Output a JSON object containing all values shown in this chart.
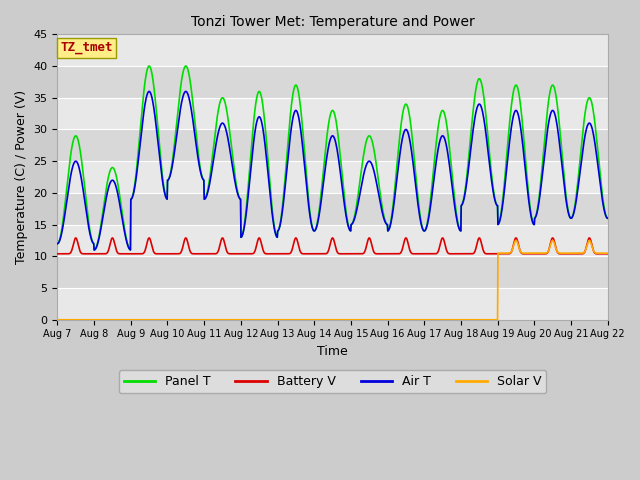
{
  "title": "Tonzi Tower Met: Temperature and Power",
  "xlabel": "Time",
  "ylabel": "Temperature (C) / Power (V)",
  "ylim": [
    0,
    45
  ],
  "yticks": [
    0,
    5,
    10,
    15,
    20,
    25,
    30,
    35,
    40,
    45
  ],
  "xtick_labels": [
    "Aug 7",
    "Aug 8",
    "Aug 9",
    "Aug 10",
    "Aug 11",
    "Aug 12",
    "Aug 13",
    "Aug 14",
    "Aug 15",
    "Aug 16",
    "Aug 17",
    "Aug 18",
    "Aug 19",
    "Aug 20",
    "Aug 21",
    "Aug 22"
  ],
  "annotation_box": "TZ_tmet",
  "annotation_box_facecolor": "#ffee88",
  "annotation_box_edgecolor": "#999900",
  "annotation_text_color": "#aa0000",
  "colors": {
    "panel_t": "#00dd00",
    "battery_v": "#dd0000",
    "air_t": "#0000dd",
    "solar_v": "#ffaa00"
  },
  "legend_labels": [
    "Panel T",
    "Battery V",
    "Air T",
    "Solar V"
  ],
  "fig_facecolor": "#cccccc",
  "band_colors": [
    "#e8e8e8",
    "#d8d8d8"
  ],
  "linewidth": 1.2
}
